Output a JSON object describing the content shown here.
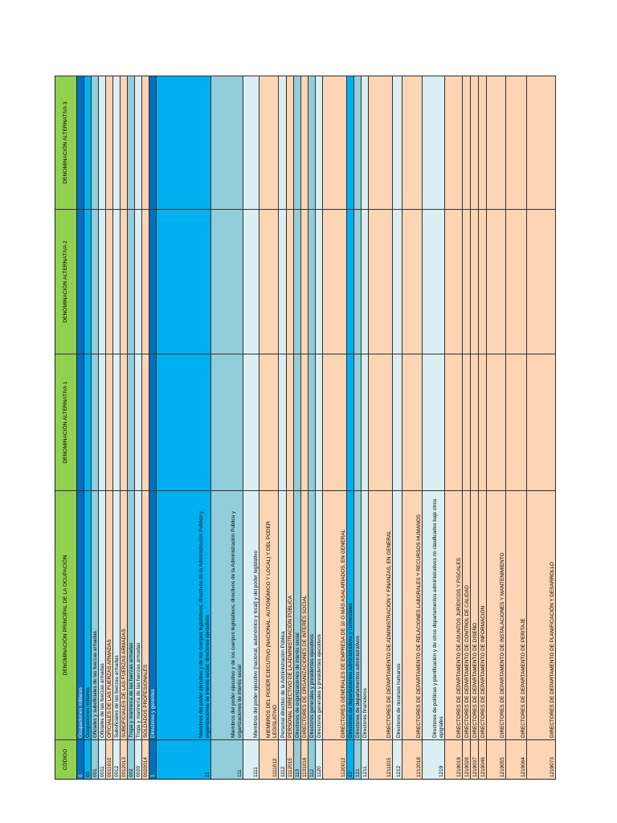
{
  "header": {
    "columns": [
      "CÓDIGO",
      "DENOMINACIÓN PRINCIPAL DE LA OCUPACIÓN",
      "DENOMINACIÓN ALTERNATIVA 1",
      "DENOMINACIÓN ALTERNATIVA 2",
      "DENOMINACIÓN ALTERNATIVA 3"
    ]
  },
  "table": {
    "rows": [
      [
        "0",
        "Ocupaciones militares"
      ],
      [
        "00",
        "Ocupaciones militares"
      ],
      [
        "001",
        "Oficiales y suboficiales de las fuerzas armadas"
      ],
      [
        "0011",
        "Oficiales de las fuerzas armadas"
      ],
      [
        "0011010",
        "OFICIALES DE LAS FUERZAS ARMADAS"
      ],
      [
        "0012",
        "Suboficiales de las fuerzas armadas"
      ],
      [
        "0012013",
        "SUBOFICIALES DE LAS FUERZAS ARMADAS"
      ],
      [
        "002",
        "Tropa y marinería de las fuerzas armadas"
      ],
      [
        "0020",
        "Tropa y marinería de las fuerzas armadas"
      ],
      [
        "0020014",
        "SOLDADOS PROFESIONALES"
      ],
      [
        "1",
        "Directores y gerentes"
      ],
      [
        "11",
        "Miembros del poder ejecutivo y de los cuerpos legislativos; directivos de la Administración Pública y organizaciones de interés social; directores ejecutivos"
      ],
      [
        "111",
        "Miembros del poder ejecutivo y de los cuerpos legislativos; directivos de la Administración Pública y organizaciones de interés social"
      ],
      [
        "1111",
        "Miembros del poder ejecutivo (nacional, autonómico y local) y del poder legislativo"
      ],
      [
        "1111012",
        "MIEMBROS DEL PODER EJECUTIVO (NACIONAL, AUTONÓMICO Y LOCAL) Y DEL PODER LEGISLATIVO"
      ],
      [
        "1112",
        "Personal directivo de la Administración Pública"
      ],
      [
        "1112015",
        "PERSONAL DIRECTIVO DE LA ADMINISTRACIÓN PÚBLICA"
      ],
      [
        "113",
        "Directores de organizaciones de interés social"
      ],
      [
        "1131018",
        "DIRECTORES DE ORGANIZACIONES DE INTERÉS SOCIAL"
      ],
      [
        "112",
        "Directores generales y presidentes ejecutivos"
      ],
      [
        "1120",
        "Directores generales y presidentes ejecutivos"
      ],
      [
        "1120012",
        "DIRECTORES GENERALES DE EMPRESA DE 10 O MÁS ASALARIADOS, EN GENERAL"
      ],
      [
        "12",
        "Directores de departamentos administrativos y comerciales"
      ],
      [
        "121",
        "Directores de departamentos administrativos"
      ],
      [
        "1211",
        "Directores financieros"
      ],
      [
        "1211015",
        "DIRECTORES DE DEPARTAMENTO DE ADMINISTRACIÓN Y FINANZAS, EN GENERAL"
      ],
      [
        "1212",
        "Directores de recursos humanos"
      ],
      [
        "1212018",
        "DIRECTORES DE DEPARTAMENTO DE RELACIONES LABORALES Y RECURSOS HUMANOS"
      ],
      [
        "1219",
        "Directores de políticas y planificación y de otros departamentos administrativos no clasificados bajo otros epígrafes"
      ],
      [
        "1219019",
        "DIRECTORES DE DEPARTAMENTO DE ASUNTOS JURÍDICOS Y FISCALES"
      ],
      [
        "1219028",
        "DIRECTORES DE DEPARTAMENTO DE CONTROL DE CALIDAD"
      ],
      [
        "1219037",
        "DIRECTORES DE DEPARTAMENTO DE DISEÑO"
      ],
      [
        "1219046",
        "DIRECTORES DE DEPARTAMENTO DE INFORMACIÓN"
      ],
      [
        "1219055",
        "DIRECTORES DE DEPARTAMENTO DE INSTALACIONES Y MANTENIMIENTO"
      ],
      [
        "1219064",
        "DIRECTORES DE DEPARTAMENTO DE PERITAJE"
      ],
      [
        "1219073",
        "DIRECTORES DE DEPARTAMENTO DE PLANIFICACIÓN Y DESARROLLO"
      ]
    ]
  }
}
